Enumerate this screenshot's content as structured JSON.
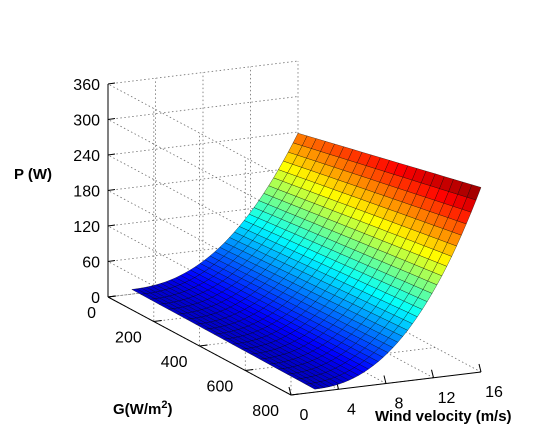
{
  "chart_data": {
    "type": "surface",
    "title": "",
    "xlabel": "Wind velocity (m/s)",
    "ylabel_base": "G(W/m",
    "ylabel_sup": "2",
    "ylabel_end": ")",
    "zlabel": "P (W)",
    "x_ticks": [
      "0",
      "4",
      "8",
      "12",
      "16"
    ],
    "y_ticks": [
      "0",
      "200",
      "400",
      "600",
      "800"
    ],
    "z_ticks": [
      "0",
      "60",
      "120",
      "180",
      "240",
      "300",
      "360"
    ],
    "xlim": [
      0,
      16
    ],
    "ylim": [
      0,
      800
    ],
    "zlim": [
      0,
      360
    ],
    "grid": true,
    "colormap": "jet",
    "surface_x": [
      2,
      16
    ],
    "surface_y": [
      0,
      800
    ],
    "corners": {
      "P_at_v2_G0": 8,
      "P_at_v2_G800": 5,
      "P_at_v16_G0": 238,
      "P_at_v16_G800": 312
    }
  }
}
